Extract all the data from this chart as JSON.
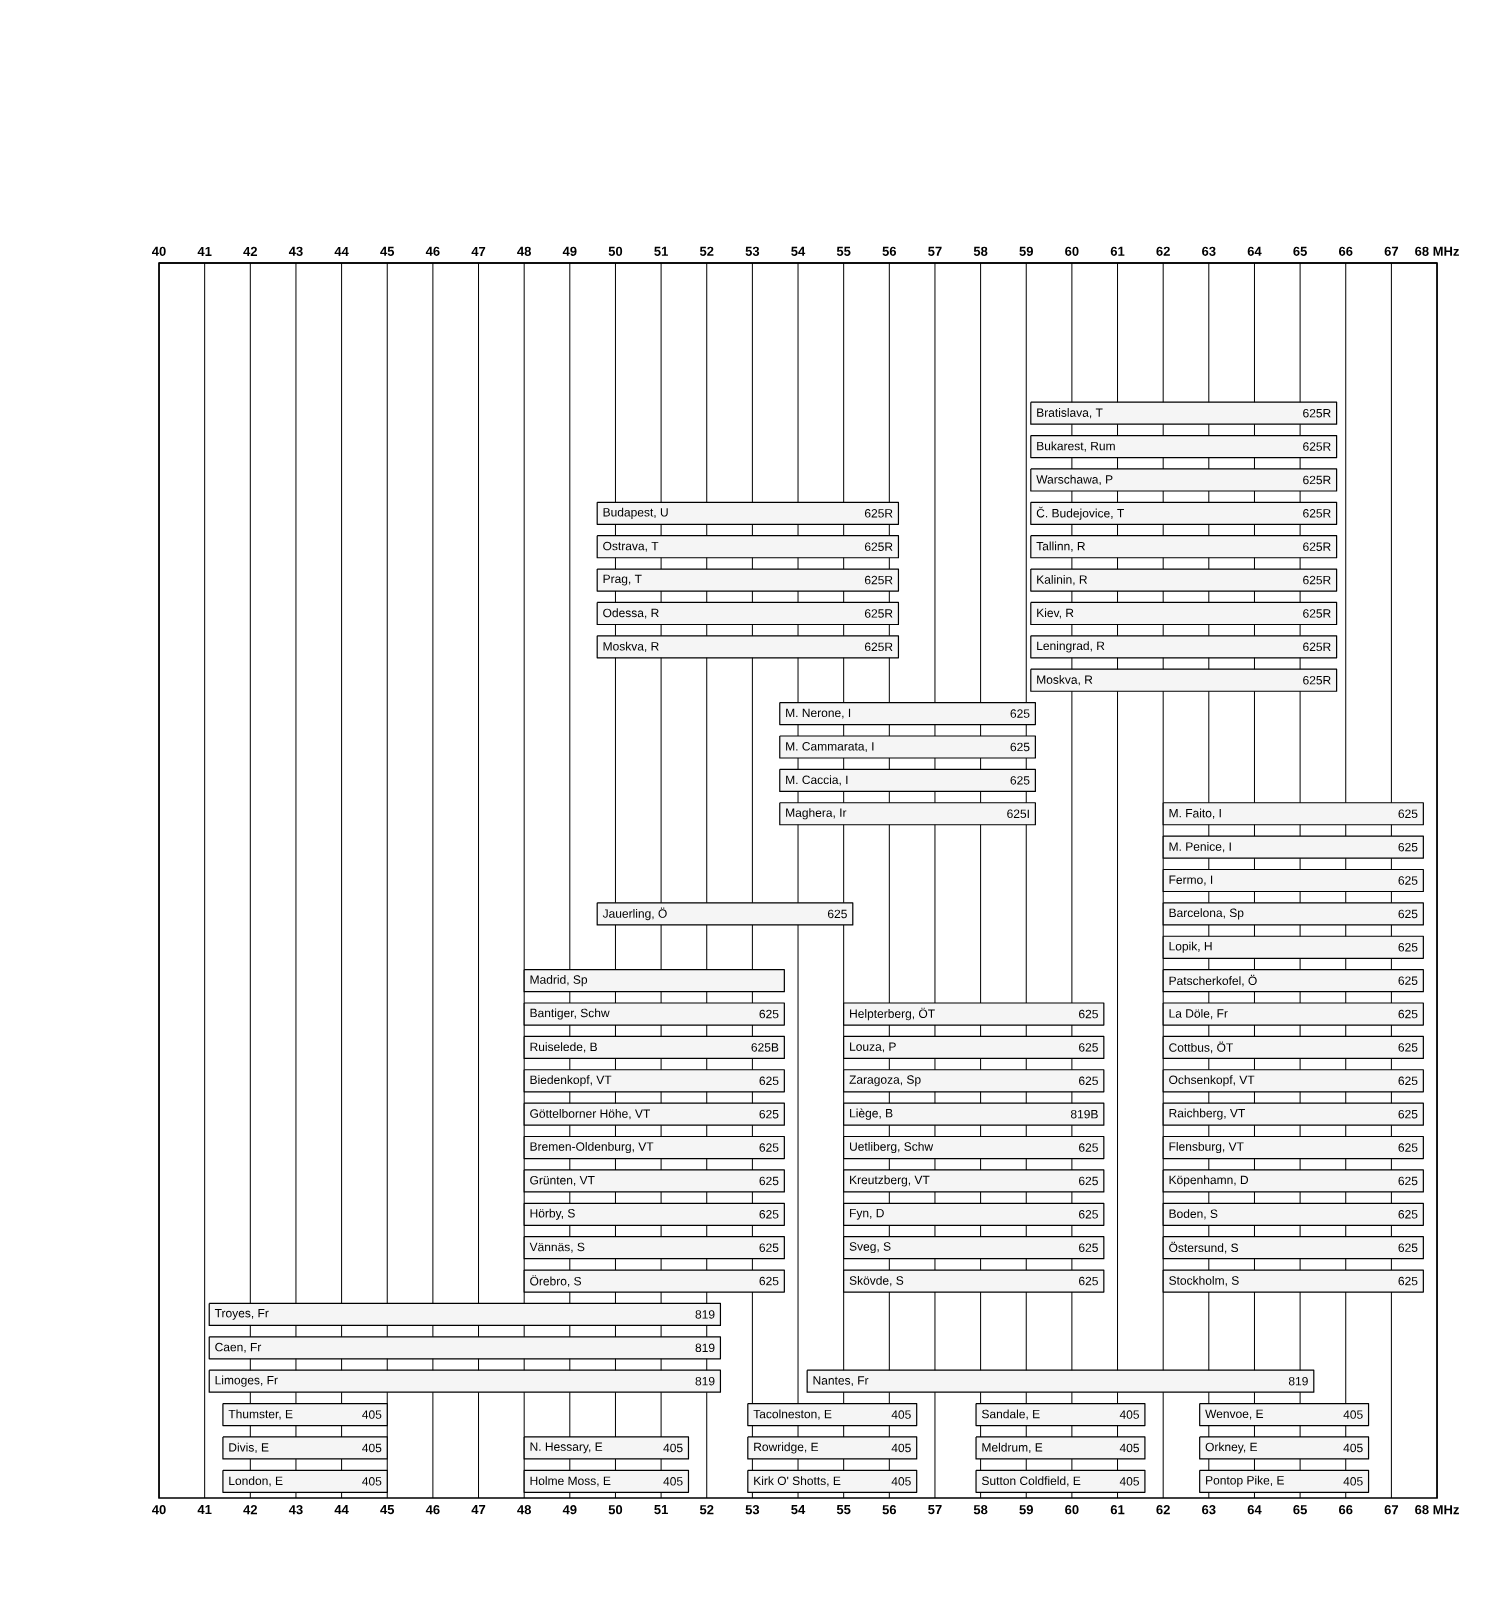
{
  "chart_data": {
    "type": "bar",
    "orientation": "horizontal",
    "grid": "x",
    "tick_labels": "x",
    "categories": [
      null,
      null,
      null,
      null,
      null,
      null,
      null,
      null,
      null,
      null,
      null,
      null,
      null,
      null,
      null,
      null,
      null,
      null,
      null,
      null,
      null,
      null,
      null,
      null,
      null,
      null,
      null,
      null,
      null,
      null,
      null,
      null,
      null,
      null,
      null,
      null,
      null
    ],
    "xlim": [
      40,
      68
    ],
    "xticks": [
      40,
      41,
      42,
      43,
      44,
      45,
      46,
      47,
      48,
      49,
      50,
      51,
      52,
      53,
      54,
      55,
      56,
      57,
      58,
      59,
      60,
      61,
      62,
      63,
      64,
      65,
      66,
      67,
      {
        "value": 68,
        "label": "68 MHz"
      }
    ],
    "x2lim": [
      40,
      68
    ],
    "x2ticks": [
      40,
      41,
      42,
      43,
      44,
      45,
      46,
      47,
      48,
      49,
      50,
      51,
      52,
      53,
      54,
      55,
      56,
      57,
      58,
      59,
      60,
      61,
      62,
      63,
      64,
      65,
      66,
      67,
      {
        "value": 68,
        "label": "68 MHz"
      }
    ],
    "series": [
      {
        "name": "819",
        "color": "#f5f5f5",
        "values": [
          null,
          null,
          null,
          null,
          null,
          null,
          null,
          null,
          null,
          null,
          null,
          null,
          null,
          null,
          null,
          null,
          null,
          null,
          null,
          null,
          null,
          null,
          null,
          null,
          null,
          null,
          null,
          null,
          null,
          null,
          null,
          11.2,
          11.2,
          11.2,
          null,
          null,
          null
        ],
        "base": [
          null,
          null,
          null,
          null,
          null,
          null,
          null,
          null,
          null,
          null,
          null,
          null,
          null,
          null,
          null,
          null,
          null,
          null,
          null,
          null,
          null,
          null,
          null,
          null,
          null,
          null,
          null,
          null,
          null,
          null,
          null,
          41.1,
          41.1,
          41.1,
          null,
          null,
          null
        ],
        "value_labels": [
          null,
          null,
          null,
          null,
          null,
          null,
          null,
          null,
          null,
          null,
          null,
          null,
          null,
          null,
          null,
          null,
          null,
          null,
          null,
          null,
          null,
          null,
          null,
          null,
          null,
          null,
          null,
          null,
          null,
          null,
          null,
          "Troyes, Fr",
          "Caen, Fr",
          "Limoges, Fr",
          null,
          null,
          null
        ]
      },
      {
        "name": "405",
        "color": "#f5f5f5",
        "values": [
          null,
          null,
          null,
          null,
          null,
          null,
          null,
          null,
          null,
          null,
          null,
          null,
          null,
          null,
          null,
          null,
          null,
          null,
          null,
          null,
          null,
          null,
          null,
          null,
          null,
          null,
          null,
          null,
          null,
          null,
          null,
          null,
          null,
          null,
          3.6,
          3.6,
          3.6
        ],
        "base": [
          null,
          null,
          null,
          null,
          null,
          null,
          null,
          null,
          null,
          null,
          null,
          null,
          null,
          null,
          null,
          null,
          null,
          null,
          null,
          null,
          null,
          null,
          null,
          null,
          null,
          null,
          null,
          null,
          null,
          null,
          null,
          null,
          null,
          null,
          41.4,
          41.4,
          41.4
        ],
        "value_labels": [
          null,
          null,
          null,
          null,
          null,
          null,
          null,
          null,
          null,
          null,
          null,
          null,
          null,
          null,
          null,
          null,
          null,
          null,
          null,
          null,
          null,
          null,
          null,
          null,
          null,
          null,
          null,
          null,
          null,
          null,
          null,
          null,
          null,
          null,
          "Thumster, E",
          "Divis, E",
          "London, E"
        ]
      },
      {
        "color": "#f5f5f5",
        "values": [
          null,
          null,
          null,
          null,
          null,
          null,
          null,
          null,
          null,
          null,
          null,
          null,
          null,
          null,
          null,
          null,
          null,
          null,
          null,
          null,
          null,
          5.7,
          null,
          null,
          null,
          null,
          null,
          null,
          null,
          null,
          null,
          null,
          null,
          null,
          null,
          null,
          null
        ],
        "base": [
          null,
          null,
          null,
          null,
          null,
          null,
          null,
          null,
          null,
          null,
          null,
          null,
          null,
          null,
          null,
          null,
          null,
          null,
          null,
          null,
          null,
          48.0,
          null,
          null,
          null,
          null,
          null,
          null,
          null,
          null,
          null,
          null,
          null,
          null,
          null,
          null,
          null
        ],
        "value_labels": [
          null,
          null,
          null,
          null,
          null,
          null,
          null,
          null,
          null,
          null,
          null,
          null,
          null,
          null,
          null,
          null,
          null,
          null,
          null,
          null,
          null,
          "Madrid, Sp",
          null,
          null,
          null,
          null,
          null,
          null,
          null,
          null,
          null,
          null,
          null,
          null,
          null,
          null,
          null
        ]
      },
      {
        "name": "625",
        "color": "#f5f5f5",
        "values": [
          null,
          null,
          null,
          null,
          null,
          null,
          null,
          null,
          null,
          null,
          null,
          null,
          null,
          null,
          null,
          null,
          null,
          null,
          null,
          null,
          null,
          null,
          5.7,
          null,
          5.7,
          5.7,
          5.7,
          5.7,
          5.7,
          5.7,
          5.7,
          null,
          null,
          null,
          null,
          null,
          null
        ],
        "base": [
          null,
          null,
          null,
          null,
          null,
          null,
          null,
          null,
          null,
          null,
          null,
          null,
          null,
          null,
          null,
          null,
          null,
          null,
          null,
          null,
          null,
          null,
          48.0,
          null,
          48.0,
          48.0,
          48.0,
          48.0,
          48.0,
          48.0,
          48.0,
          null,
          null,
          null,
          null,
          null,
          null
        ],
        "value_labels": [
          null,
          null,
          null,
          null,
          null,
          null,
          null,
          null,
          null,
          null,
          null,
          null,
          null,
          null,
          null,
          null,
          null,
          null,
          null,
          null,
          null,
          null,
          "Bantiger, Schw",
          null,
          "Biedenkopf, VT",
          "Göttelborner Höhe, VT",
          "Bremen-Oldenburg, VT",
          "Grünten, VT",
          "Hörby, S",
          "Vännäs, S",
          "Örebro, S",
          null,
          null,
          null,
          null,
          null,
          null
        ]
      },
      {
        "name": "625B",
        "color": "#f5f5f5",
        "values": [
          null,
          null,
          null,
          null,
          null,
          null,
          null,
          null,
          null,
          null,
          null,
          null,
          null,
          null,
          null,
          null,
          null,
          null,
          null,
          null,
          null,
          null,
          null,
          5.7,
          null,
          null,
          null,
          null,
          null,
          null,
          null,
          null,
          null,
          null,
          null,
          null,
          null
        ],
        "base": [
          null,
          null,
          null,
          null,
          null,
          null,
          null,
          null,
          null,
          null,
          null,
          null,
          null,
          null,
          null,
          null,
          null,
          null,
          null,
          null,
          null,
          null,
          null,
          48.0,
          null,
          null,
          null,
          null,
          null,
          null,
          null,
          null,
          null,
          null,
          null,
          null,
          null
        ],
        "value_labels": [
          null,
          null,
          null,
          null,
          null,
          null,
          null,
          null,
          null,
          null,
          null,
          null,
          null,
          null,
          null,
          null,
          null,
          null,
          null,
          null,
          null,
          null,
          null,
          "Ruiselede, B",
          null,
          null,
          null,
          null,
          null,
          null,
          null,
          null,
          null,
          null,
          null,
          null,
          null
        ]
      },
      {
        "name": "405",
        "color": "#f5f5f5",
        "values": [
          null,
          null,
          null,
          null,
          null,
          null,
          null,
          null,
          null,
          null,
          null,
          null,
          null,
          null,
          null,
          null,
          null,
          null,
          null,
          null,
          null,
          null,
          null,
          null,
          null,
          null,
          null,
          null,
          null,
          null,
          null,
          null,
          null,
          null,
          null,
          3.6,
          3.6
        ],
        "base": [
          null,
          null,
          null,
          null,
          null,
          null,
          null,
          null,
          null,
          null,
          null,
          null,
          null,
          null,
          null,
          null,
          null,
          null,
          null,
          null,
          null,
          null,
          null,
          null,
          null,
          null,
          null,
          null,
          null,
          null,
          null,
          null,
          null,
          null,
          null,
          48.0,
          48.0
        ],
        "value_labels": [
          null,
          null,
          null,
          null,
          null,
          null,
          null,
          null,
          null,
          null,
          null,
          null,
          null,
          null,
          null,
          null,
          null,
          null,
          null,
          null,
          null,
          null,
          null,
          null,
          null,
          null,
          null,
          null,
          null,
          null,
          null,
          null,
          null,
          null,
          null,
          "N. Hessary, E",
          "Holme Moss, E"
        ]
      },
      {
        "name": "625R",
        "color": "#f5f5f5",
        "values": [
          null,
          null,
          null,
          null,
          null,
          null,
          null,
          6.6,
          6.6,
          6.6,
          6.6,
          6.6,
          null,
          null,
          null,
          null,
          null,
          null,
          null,
          null,
          null,
          null,
          null,
          null,
          null,
          null,
          null,
          null,
          null,
          null,
          null,
          null,
          null,
          null,
          null,
          null,
          null
        ],
        "base": [
          null,
          null,
          null,
          null,
          null,
          null,
          null,
          49.6,
          49.6,
          49.6,
          49.6,
          49.6,
          null,
          null,
          null,
          null,
          null,
          null,
          null,
          null,
          null,
          null,
          null,
          null,
          null,
          null,
          null,
          null,
          null,
          null,
          null,
          null,
          null,
          null,
          null,
          null,
          null
        ],
        "value_labels": [
          null,
          null,
          null,
          null,
          null,
          null,
          null,
          "Budapest, U",
          "Ostrava, T",
          "Prag, T",
          "Odessa, R",
          "Moskva, R",
          null,
          null,
          null,
          null,
          null,
          null,
          null,
          null,
          null,
          null,
          null,
          null,
          null,
          null,
          null,
          null,
          null,
          null,
          null,
          null,
          null,
          null,
          null,
          null,
          null
        ]
      },
      {
        "name": "625",
        "color": "#f5f5f5",
        "values": [
          null,
          null,
          null,
          null,
          null,
          null,
          null,
          null,
          null,
          null,
          null,
          null,
          null,
          null,
          null,
          null,
          null,
          null,
          null,
          5.6,
          null,
          null,
          null,
          null,
          null,
          null,
          null,
          null,
          null,
          null,
          null,
          null,
          null,
          null,
          null,
          null,
          null
        ],
        "base": [
          null,
          null,
          null,
          null,
          null,
          null,
          null,
          null,
          null,
          null,
          null,
          null,
          null,
          null,
          null,
          null,
          null,
          null,
          null,
          49.6,
          null,
          null,
          null,
          null,
          null,
          null,
          null,
          null,
          null,
          null,
          null,
          null,
          null,
          null,
          null,
          null,
          null
        ],
        "value_labels": [
          null,
          null,
          null,
          null,
          null,
          null,
          null,
          null,
          null,
          null,
          null,
          null,
          null,
          null,
          null,
          null,
          null,
          null,
          null,
          "Jauerling, Ö",
          null,
          null,
          null,
          null,
          null,
          null,
          null,
          null,
          null,
          null,
          null,
          null,
          null,
          null,
          null,
          null,
          null
        ]
      },
      {
        "name": "405",
        "color": "#f5f5f5",
        "values": [
          null,
          null,
          null,
          null,
          null,
          null,
          null,
          null,
          null,
          null,
          null,
          null,
          null,
          null,
          null,
          null,
          null,
          null,
          null,
          null,
          null,
          null,
          null,
          null,
          null,
          null,
          null,
          null,
          null,
          null,
          null,
          null,
          null,
          null,
          3.7,
          3.7,
          3.7
        ],
        "base": [
          null,
          null,
          null,
          null,
          null,
          null,
          null,
          null,
          null,
          null,
          null,
          null,
          null,
          null,
          null,
          null,
          null,
          null,
          null,
          null,
          null,
          null,
          null,
          null,
          null,
          null,
          null,
          null,
          null,
          null,
          null,
          null,
          null,
          null,
          52.9,
          52.9,
          52.9
        ],
        "value_labels": [
          null,
          null,
          null,
          null,
          null,
          null,
          null,
          null,
          null,
          null,
          null,
          null,
          null,
          null,
          null,
          null,
          null,
          null,
          null,
          null,
          null,
          null,
          null,
          null,
          null,
          null,
          null,
          null,
          null,
          null,
          null,
          null,
          null,
          null,
          "Tacolneston, E",
          "Rowridge, E",
          "Kirk O' Shotts, E"
        ]
      },
      {
        "name": "625",
        "color": "#f5f5f5",
        "values": [
          null,
          null,
          null,
          null,
          null,
          null,
          null,
          null,
          null,
          null,
          null,
          null,
          null,
          5.6,
          5.6,
          5.6,
          null,
          null,
          null,
          null,
          null,
          null,
          null,
          null,
          null,
          null,
          null,
          null,
          null,
          null,
          null,
          null,
          null,
          null,
          null,
          null,
          null
        ],
        "base": [
          null,
          null,
          null,
          null,
          null,
          null,
          null,
          null,
          null,
          null,
          null,
          null,
          null,
          53.6,
          53.6,
          53.6,
          null,
          null,
          null,
          null,
          null,
          null,
          null,
          null,
          null,
          null,
          null,
          null,
          null,
          null,
          null,
          null,
          null,
          null,
          null,
          null,
          null
        ],
        "value_labels": [
          null,
          null,
          null,
          null,
          null,
          null,
          null,
          null,
          null,
          null,
          null,
          null,
          null,
          "M. Nerone, I",
          "M. Cammarata, I",
          "M. Caccia, I",
          null,
          null,
          null,
          null,
          null,
          null,
          null,
          null,
          null,
          null,
          null,
          null,
          null,
          null,
          null,
          null,
          null,
          null,
          null,
          null,
          null
        ]
      },
      {
        "name": "625I",
        "color": "#f5f5f5",
        "values": [
          null,
          null,
          null,
          null,
          null,
          null,
          null,
          null,
          null,
          null,
          null,
          null,
          null,
          null,
          null,
          null,
          5.6,
          null,
          null,
          null,
          null,
          null,
          null,
          null,
          null,
          null,
          null,
          null,
          null,
          null,
          null,
          null,
          null,
          null,
          null,
          null,
          null
        ],
        "base": [
          null,
          null,
          null,
          null,
          null,
          null,
          null,
          null,
          null,
          null,
          null,
          null,
          null,
          null,
          null,
          null,
          53.6,
          null,
          null,
          null,
          null,
          null,
          null,
          null,
          null,
          null,
          null,
          null,
          null,
          null,
          null,
          null,
          null,
          null,
          null,
          null,
          null
        ],
        "value_labels": [
          null,
          null,
          null,
          null,
          null,
          null,
          null,
          null,
          null,
          null,
          null,
          null,
          null,
          null,
          null,
          null,
          "Maghera, Ir",
          null,
          null,
          null,
          null,
          null,
          null,
          null,
          null,
          null,
          null,
          null,
          null,
          null,
          null,
          null,
          null,
          null,
          null,
          null,
          null
        ]
      },
      {
        "name": "819",
        "color": "#f5f5f5",
        "values": [
          null,
          null,
          null,
          null,
          null,
          null,
          null,
          null,
          null,
          null,
          null,
          null,
          null,
          null,
          null,
          null,
          null,
          null,
          null,
          null,
          null,
          null,
          null,
          null,
          null,
          null,
          null,
          null,
          null,
          null,
          null,
          null,
          null,
          11.1,
          null,
          null,
          null
        ],
        "base": [
          null,
          null,
          null,
          null,
          null,
          null,
          null,
          null,
          null,
          null,
          null,
          null,
          null,
          null,
          null,
          null,
          null,
          null,
          null,
          null,
          null,
          null,
          null,
          null,
          null,
          null,
          null,
          null,
          null,
          null,
          null,
          null,
          null,
          54.2,
          null,
          null,
          null
        ],
        "value_labels": [
          null,
          null,
          null,
          null,
          null,
          null,
          null,
          null,
          null,
          null,
          null,
          null,
          null,
          null,
          null,
          null,
          null,
          null,
          null,
          null,
          null,
          null,
          null,
          null,
          null,
          null,
          null,
          null,
          null,
          null,
          null,
          null,
          null,
          "Nantes, Fr",
          null,
          null,
          null
        ]
      },
      {
        "name": "625",
        "color": "#f5f5f5",
        "values": [
          null,
          null,
          null,
          null,
          null,
          null,
          null,
          null,
          null,
          null,
          null,
          null,
          null,
          null,
          null,
          null,
          null,
          null,
          null,
          null,
          null,
          null,
          5.7,
          5.7,
          5.7,
          null,
          5.7,
          5.7,
          5.7,
          5.7,
          5.7,
          null,
          null,
          null,
          null,
          null,
          null
        ],
        "base": [
          null,
          null,
          null,
          null,
          null,
          null,
          null,
          null,
          null,
          null,
          null,
          null,
          null,
          null,
          null,
          null,
          null,
          null,
          null,
          null,
          null,
          null,
          55.0,
          55.0,
          55.0,
          null,
          55.0,
          55.0,
          55.0,
          55.0,
          55.0,
          null,
          null,
          null,
          null,
          null,
          null
        ],
        "value_labels": [
          null,
          null,
          null,
          null,
          null,
          null,
          null,
          null,
          null,
          null,
          null,
          null,
          null,
          null,
          null,
          null,
          null,
          null,
          null,
          null,
          null,
          null,
          "Helpterberg, ÖT",
          "Louza, P",
          "Zaragoza, Sp",
          null,
          "Uetliberg, Schw",
          "Kreutzberg, VT",
          "Fyn, D",
          "Sveg, S",
          "Skövde, S",
          null,
          null,
          null,
          null,
          null,
          null
        ]
      },
      {
        "name": "819B",
        "color": "#f5f5f5",
        "values": [
          null,
          null,
          null,
          null,
          null,
          null,
          null,
          null,
          null,
          null,
          null,
          null,
          null,
          null,
          null,
          null,
          null,
          null,
          null,
          null,
          null,
          null,
          null,
          null,
          null,
          5.7,
          null,
          null,
          null,
          null,
          null,
          null,
          null,
          null,
          null,
          null,
          null
        ],
        "base": [
          null,
          null,
          null,
          null,
          null,
          null,
          null,
          null,
          null,
          null,
          null,
          null,
          null,
          null,
          null,
          null,
          null,
          null,
          null,
          null,
          null,
          null,
          null,
          null,
          null,
          55.0,
          null,
          null,
          null,
          null,
          null,
          null,
          null,
          null,
          null,
          null,
          null
        ],
        "value_labels": [
          null,
          null,
          null,
          null,
          null,
          null,
          null,
          null,
          null,
          null,
          null,
          null,
          null,
          null,
          null,
          null,
          null,
          null,
          null,
          null,
          null,
          null,
          null,
          null,
          null,
          "Liège, B",
          null,
          null,
          null,
          null,
          null,
          null,
          null,
          null,
          null,
          null,
          null
        ]
      },
      {
        "name": "405",
        "color": "#f5f5f5",
        "values": [
          null,
          null,
          null,
          null,
          null,
          null,
          null,
          null,
          null,
          null,
          null,
          null,
          null,
          null,
          null,
          null,
          null,
          null,
          null,
          null,
          null,
          null,
          null,
          null,
          null,
          null,
          null,
          null,
          null,
          null,
          null,
          null,
          null,
          null,
          3.7,
          3.7,
          3.7
        ],
        "base": [
          null,
          null,
          null,
          null,
          null,
          null,
          null,
          null,
          null,
          null,
          null,
          null,
          null,
          null,
          null,
          null,
          null,
          null,
          null,
          null,
          null,
          null,
          null,
          null,
          null,
          null,
          null,
          null,
          null,
          null,
          null,
          null,
          null,
          null,
          57.9,
          57.9,
          57.9
        ],
        "value_labels": [
          null,
          null,
          null,
          null,
          null,
          null,
          null,
          null,
          null,
          null,
          null,
          null,
          null,
          null,
          null,
          null,
          null,
          null,
          null,
          null,
          null,
          null,
          null,
          null,
          null,
          null,
          null,
          null,
          null,
          null,
          null,
          null,
          null,
          null,
          "Sandale, E",
          "Meldrum, E",
          "Sutton Coldfield, E"
        ]
      },
      {
        "name": "625R",
        "color": "#f5f5f5",
        "values": [
          null,
          null,
          null,
          null,
          6.7,
          6.7,
          6.7,
          6.7,
          6.7,
          6.7,
          6.7,
          6.7,
          6.7,
          null,
          null,
          null,
          null,
          null,
          null,
          null,
          null,
          null,
          null,
          null,
          null,
          null,
          null,
          null,
          null,
          null,
          null,
          null,
          null,
          null,
          null,
          null,
          null
        ],
        "base": [
          null,
          null,
          null,
          null,
          59.1,
          59.1,
          59.1,
          59.1,
          59.1,
          59.1,
          59.1,
          59.1,
          59.1,
          null,
          null,
          null,
          null,
          null,
          null,
          null,
          null,
          null,
          null,
          null,
          null,
          null,
          null,
          null,
          null,
          null,
          null,
          null,
          null,
          null,
          null,
          null,
          null
        ],
        "value_labels": [
          null,
          null,
          null,
          null,
          "Bratislava, T",
          "Bukarest, Rum",
          "Warschawa, P",
          "Č. Budejovice, T",
          "Tallinn, R",
          "Kalinin, R",
          "Kiev, R",
          "Leningrad, R",
          "Moskva, R",
          null,
          null,
          null,
          null,
          null,
          null,
          null,
          null,
          null,
          null,
          null,
          null,
          null,
          null,
          null,
          null,
          null,
          null,
          null,
          null,
          null,
          null,
          null,
          null
        ]
      },
      {
        "name": "625",
        "color": "#f5f5f5",
        "values": [
          null,
          null,
          null,
          null,
          null,
          null,
          null,
          null,
          null,
          null,
          null,
          null,
          null,
          null,
          null,
          null,
          5.7,
          5.7,
          5.7,
          5.7,
          5.7,
          5.7,
          5.7,
          5.7,
          5.7,
          5.7,
          5.7,
          5.7,
          5.7,
          5.7,
          5.7,
          null,
          null,
          null,
          null,
          null,
          null
        ],
        "base": [
          null,
          null,
          null,
          null,
          null,
          null,
          null,
          null,
          null,
          null,
          null,
          null,
          null,
          null,
          null,
          null,
          62.0,
          62.0,
          62.0,
          62.0,
          62.0,
          62.0,
          62.0,
          62.0,
          62.0,
          62.0,
          62.0,
          62.0,
          62.0,
          62.0,
          62.0,
          null,
          null,
          null,
          null,
          null,
          null
        ],
        "value_labels": [
          null,
          null,
          null,
          null,
          null,
          null,
          null,
          null,
          null,
          null,
          null,
          null,
          null,
          null,
          null,
          null,
          "M. Faito, I",
          "M. Penice, I",
          "Fermo, I",
          "Barcelona, Sp",
          "Lopik, H",
          "Patscherkofel, Ö",
          "La Döle, Fr",
          "Cottbus, ÖT",
          "Ochsenkopf, VT",
          "Raichberg, VT",
          "Flensburg, VT",
          "Köpenhamn, D",
          "Boden, S",
          "Östersund, S",
          "Stockholm, S",
          null,
          null,
          null,
          null,
          null,
          null
        ]
      },
      {
        "name": "405",
        "color": "#f5f5f5",
        "values": [
          null,
          null,
          null,
          null,
          null,
          null,
          null,
          null,
          null,
          null,
          null,
          null,
          null,
          null,
          null,
          null,
          null,
          null,
          null,
          null,
          null,
          null,
          null,
          null,
          null,
          null,
          null,
          null,
          null,
          null,
          null,
          null,
          null,
          null,
          3.7,
          3.7,
          3.7
        ],
        "base": [
          null,
          null,
          null,
          null,
          null,
          null,
          null,
          null,
          null,
          null,
          null,
          null,
          null,
          null,
          null,
          null,
          null,
          null,
          null,
          null,
          null,
          null,
          null,
          null,
          null,
          null,
          null,
          null,
          null,
          null,
          null,
          null,
          null,
          null,
          62.8,
          62.8,
          62.8
        ],
        "value_labels": [
          null,
          null,
          null,
          null,
          null,
          null,
          null,
          null,
          null,
          null,
          null,
          null,
          null,
          null,
          null,
          null,
          null,
          null,
          null,
          null,
          null,
          null,
          null,
          null,
          null,
          null,
          null,
          null,
          null,
          null,
          null,
          null,
          null,
          null,
          "Wenvoe, E",
          "Orkney, E",
          "Pontop Pike, E"
        ]
      }
    ]
  }
}
